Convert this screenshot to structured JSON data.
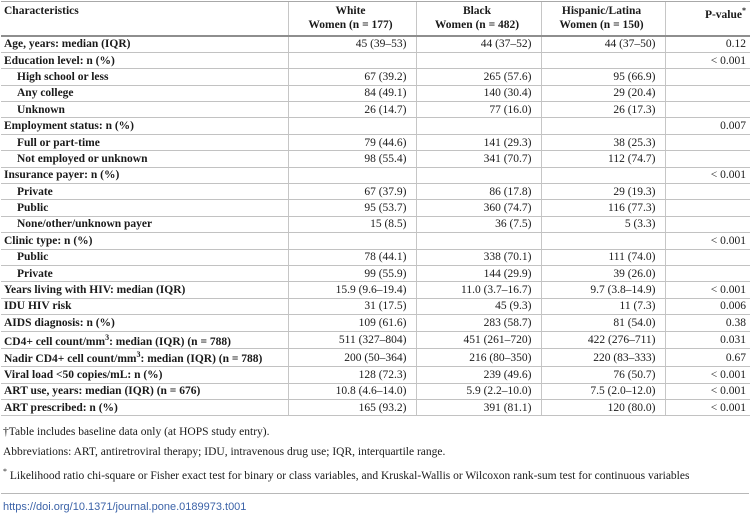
{
  "colors": {
    "link_color": "#3c63a8",
    "rule_color": "#c2c2c2",
    "header_rule_color": "#8e8e8e"
  },
  "table": {
    "header": {
      "characteristics": "Characteristics",
      "col_white_line1": "White",
      "col_white_line2": "Women (n = 177)",
      "col_black_line1": "Black",
      "col_black_line2": "Women (n = 482)",
      "col_hispanic_line1": "Hispanic/Latina",
      "col_hispanic_line2": "Women (n = 150)",
      "col_pvalue": "P-value",
      "col_pvalue_sup": "*"
    },
    "rows": [
      {
        "label": "Age, years: median (IQR)",
        "indent": false,
        "values": [
          "45 (39–53)",
          "44 (37–52)",
          "44 (37–50)",
          "0.12"
        ]
      },
      {
        "label": "Education level: n (%)",
        "indent": false,
        "values": [
          "",
          "",
          "",
          "< 0.001"
        ]
      },
      {
        "label": "High school or less",
        "indent": true,
        "values": [
          "67 (39.2)",
          "265 (57.6)",
          "95 (66.9)",
          ""
        ]
      },
      {
        "label": "Any college",
        "indent": true,
        "values": [
          "84 (49.1)",
          "140 (30.4)",
          "29 (20.4)",
          ""
        ]
      },
      {
        "label": "Unknown",
        "indent": true,
        "values": [
          "26 (14.7)",
          "77 (16.0)",
          "26 (17.3)",
          ""
        ]
      },
      {
        "label": "Employment status: n (%)",
        "indent": false,
        "values": [
          "",
          "",
          "",
          "0.007"
        ]
      },
      {
        "label": "Full or part-time",
        "indent": true,
        "values": [
          "79 (44.6)",
          "141 (29.3)",
          "38 (25.3)",
          ""
        ]
      },
      {
        "label": "Not employed or unknown",
        "indent": true,
        "values": [
          "98 (55.4)",
          "341 (70.7)",
          "112 (74.7)",
          ""
        ]
      },
      {
        "label": "Insurance payer: n (%)",
        "indent": false,
        "values": [
          "",
          "",
          "",
          "< 0.001"
        ]
      },
      {
        "label": "Private",
        "indent": true,
        "values": [
          "67 (37.9)",
          "86 (17.8)",
          "29 (19.3)",
          ""
        ]
      },
      {
        "label": "Public",
        "indent": true,
        "values": [
          "95 (53.7)",
          "360 (74.7)",
          "116 (77.3)",
          ""
        ]
      },
      {
        "label": "None/other/unknown payer",
        "indent": true,
        "values": [
          "15 (8.5)",
          "36 (7.5)",
          "5 (3.3)",
          ""
        ]
      },
      {
        "label": "Clinic type: n (%)",
        "indent": false,
        "values": [
          "",
          "",
          "",
          "< 0.001"
        ]
      },
      {
        "label": "Public",
        "indent": true,
        "values": [
          "78 (44.1)",
          "338 (70.1)",
          "111 (74.0)",
          ""
        ]
      },
      {
        "label": "Private",
        "indent": true,
        "values": [
          "99 (55.9)",
          "144 (29.9)",
          "39 (26.0)",
          ""
        ]
      },
      {
        "label": "Years living with HIV: median (IQR)",
        "indent": false,
        "values": [
          "15.9 (9.6–19.4)",
          "11.0 (3.7–16.7)",
          "9.7 (3.8–14.9)",
          "< 0.001"
        ]
      },
      {
        "label": "IDU HIV risk",
        "indent": false,
        "values": [
          "31 (17.5)",
          "45 (9.3)",
          "11 (7.3)",
          "0.006"
        ]
      },
      {
        "label": "AIDS diagnosis: n (%)",
        "indent": false,
        "values": [
          "109 (61.6)",
          "283 (58.7)",
          "81 (54.0)",
          "0.38"
        ]
      },
      {
        "label": "CD4+ cell count/mm",
        "label_sup": "3",
        "label_post": ": median (IQR) (n = 788)",
        "indent": false,
        "values": [
          "511 (327–804)",
          "451 (261–720)",
          "422 (276–711)",
          "0.031"
        ]
      },
      {
        "label": "Nadir CD4+ cell count/mm",
        "label_sup": "3",
        "label_post": ": median (IQR) (n = 788)",
        "indent": false,
        "values": [
          "200 (50–364)",
          "216 (80–350)",
          "220 (83–333)",
          "0.67"
        ]
      },
      {
        "label": "Viral load <50 copies/mL: n (%)",
        "indent": false,
        "values": [
          "128 (72.3)",
          "239 (49.6)",
          "76 (50.7)",
          "< 0.001"
        ]
      },
      {
        "label": "ART use, years: median (IQR) (n = 676)",
        "indent": false,
        "values": [
          "10.8 (4.6–14.0)",
          "5.9 (2.2–10.0)",
          "7.5 (2.0–12.0)",
          "< 0.001"
        ]
      },
      {
        "label": "ART prescribed: n (%)",
        "indent": false,
        "values": [
          "165 (93.2)",
          "391 (81.1)",
          "120 (80.0)",
          "< 0.001"
        ]
      }
    ]
  },
  "footnotes": [
    {
      "text": "†Table includes baseline data only (at HOPS study entry)."
    },
    {
      "text": "Abbreviations: ART, antiretroviral therapy; IDU, intravenous drug use; IQR, interquartile range."
    },
    {
      "sup": "*",
      "text": " Likelihood ratio chi-square or Fisher exact test for binary or class variables, and Kruskal-Wallis or Wilcoxon rank-sum test for continuous variables"
    }
  ],
  "doi": "https://doi.org/10.1371/journal.pone.0189973.t001"
}
